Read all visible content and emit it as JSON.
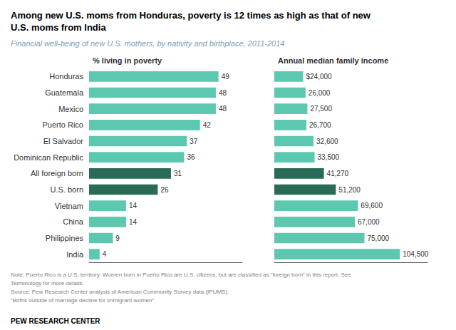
{
  "title": "Among new U.S. moms from Honduras, poverty is 12 times as high as that of new\nU.S. moms from India",
  "subtitle": "Financial well-being of new U.S. mothers, by nativity and birthplace, 2011-2014",
  "notes": [
    "Note: Puerto Rico is a U.S. territory. Women born in Puerto Rico are U.S. citizens, but are classified as “foreign born” in this report. See",
    "Terminology for more details.",
    "Source: Pew Research Center analysis of American Community Survey data (IPUMS).",
    "“Births outside of marriage decline for immigrant women”"
  ],
  "footer": "PEW RESEARCH CENTER",
  "chart_data": [
    {
      "type": "bar",
      "orientation": "horizontal",
      "title": "% living in poverty",
      "categories": [
        "Honduras",
        "Guatemala",
        "Mexico",
        "Puerto Rico",
        "El Salvador",
        "Dominican Republic",
        "All foreign born",
        "U.S. born",
        "Vietnam",
        "China",
        "Philippines",
        "India"
      ],
      "values": [
        49,
        48,
        48,
        42,
        37,
        36,
        31,
        26,
        14,
        14,
        9,
        4
      ],
      "colors": [
        "#5BC8AF",
        "#5BC8AF",
        "#5BC8AF",
        "#5BC8AF",
        "#5BC8AF",
        "#5BC8AF",
        "#2A6B58",
        "#2A6B58",
        "#5BC8AF",
        "#5BC8AF",
        "#5BC8AF",
        "#5BC8AF"
      ],
      "xlim": [
        0,
        58
      ],
      "data_labels": true,
      "tick_labels": "y",
      "grid": false
    },
    {
      "type": "bar",
      "orientation": "horizontal",
      "title": "Annual median family income",
      "categories": [
        "Honduras",
        "Guatemala",
        "Mexico",
        "Puerto Rico",
        "El Salvador",
        "Dominican Republic",
        "All foreign born",
        "U.S. born",
        "Vietnam",
        "China",
        "Philippines",
        "India"
      ],
      "values": [
        24000,
        26000,
        27500,
        26700,
        32600,
        33500,
        41270,
        51200,
        69600,
        67000,
        75000,
        104500
      ],
      "value_labels": [
        "$24,000",
        "26,000",
        "27,500",
        "26,700",
        "32,600",
        "33,500",
        "41,270",
        "51,200",
        "69,600",
        "67,000",
        "75,000",
        "104,500"
      ],
      "colors": [
        "#5BC8AF",
        "#5BC8AF",
        "#5BC8AF",
        "#5BC8AF",
        "#5BC8AF",
        "#5BC8AF",
        "#2A6B58",
        "#2A6B58",
        "#5BC8AF",
        "#5BC8AF",
        "#5BC8AF",
        "#5BC8AF"
      ],
      "xlim": [
        0,
        127490
      ],
      "data_labels": true,
      "tick_labels": false,
      "grid": false
    }
  ]
}
